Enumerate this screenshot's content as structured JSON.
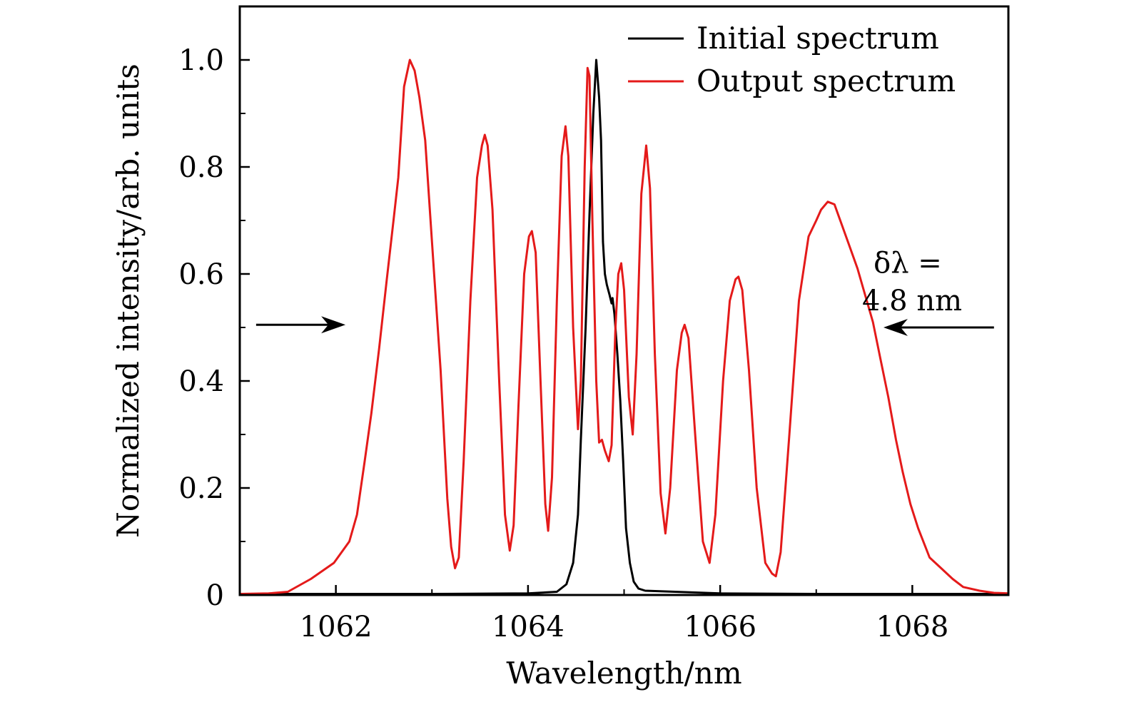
{
  "chart_data": {
    "type": "line",
    "title": "",
    "xlabel": "Wavelength/nm",
    "ylabel": "Normalized intensity/arb. units",
    "xlim": [
      1061,
      1069
    ],
    "ylim": [
      0,
      1.1
    ],
    "x_ticks": [
      1062,
      1064,
      1066,
      1068
    ],
    "x_tick_labels": [
      "1062",
      "1064",
      "1066",
      "1068"
    ],
    "x_minor_ticks": [
      1063,
      1065,
      1067
    ],
    "y_ticks": [
      0,
      0.2,
      0.4,
      0.6,
      0.8,
      1.0
    ],
    "y_tick_labels": [
      "0",
      "0.2",
      "0.4",
      "0.6",
      "0.8",
      "1.0"
    ],
    "y_minor_ticks": [
      0.1,
      0.3,
      0.5,
      0.7,
      0.9
    ],
    "grid": false,
    "legend": {
      "placement": "top-right",
      "entries": [
        "Initial spectrum",
        "Output spectrum"
      ]
    },
    "series": [
      {
        "name": "Initial spectrum",
        "color": "#000000",
        "x": [
          1061.0,
          1062.0,
          1063.0,
          1064.0,
          1064.3,
          1064.4,
          1064.47,
          1064.52,
          1064.55,
          1064.6,
          1064.64,
          1064.68,
          1064.71,
          1064.74,
          1064.76,
          1064.78,
          1064.8,
          1064.82,
          1064.85,
          1064.87,
          1064.88,
          1064.9,
          1064.93,
          1064.96,
          1064.99,
          1065.02,
          1065.06,
          1065.1,
          1065.15,
          1065.22,
          1066.0,
          1067.0,
          1068.0,
          1069.0
        ],
        "y": [
          0.002,
          0.002,
          0.002,
          0.003,
          0.006,
          0.02,
          0.06,
          0.15,
          0.29,
          0.5,
          0.71,
          0.9,
          1.0,
          0.93,
          0.85,
          0.66,
          0.6,
          0.58,
          0.56,
          0.545,
          0.555,
          0.525,
          0.45,
          0.365,
          0.25,
          0.125,
          0.06,
          0.025,
          0.012,
          0.008,
          0.003,
          0.002,
          0.002,
          0.002
        ]
      },
      {
        "name": "Output spectrum",
        "color": "#e41a1a",
        "x": [
          1061.0,
          1061.3,
          1061.5,
          1061.74,
          1061.98,
          1062.14,
          1062.22,
          1062.3,
          1062.37,
          1062.45,
          1062.53,
          1062.6,
          1062.65,
          1062.71,
          1062.77,
          1062.82,
          1062.87,
          1062.93,
          1063.0,
          1063.09,
          1063.16,
          1063.2,
          1063.24,
          1063.28,
          1063.33,
          1063.4,
          1063.47,
          1063.52,
          1063.55,
          1063.58,
          1063.63,
          1063.7,
          1063.76,
          1063.81,
          1063.85,
          1063.9,
          1063.96,
          1064.01,
          1064.04,
          1064.08,
          1064.13,
          1064.18,
          1064.21,
          1064.25,
          1064.3,
          1064.35,
          1064.39,
          1064.42,
          1064.47,
          1064.52,
          1064.55,
          1064.59,
          1064.62,
          1064.64,
          1064.67,
          1064.71,
          1064.74,
          1064.77,
          1064.8,
          1064.84,
          1064.87,
          1064.91,
          1064.94,
          1064.97,
          1065.0,
          1065.05,
          1065.09,
          1065.13,
          1065.18,
          1065.23,
          1065.27,
          1065.32,
          1065.38,
          1065.43,
          1065.48,
          1065.55,
          1065.6,
          1065.63,
          1065.67,
          1065.74,
          1065.82,
          1065.89,
          1065.95,
          1066.03,
          1066.1,
          1066.16,
          1066.19,
          1066.23,
          1066.3,
          1066.38,
          1066.47,
          1066.54,
          1066.58,
          1066.63,
          1066.72,
          1066.82,
          1066.92,
          1067.0,
          1067.05,
          1067.12,
          1067.19,
          1067.25,
          1067.33,
          1067.43,
          1067.51,
          1067.59,
          1067.67,
          1067.75,
          1067.83,
          1067.9,
          1067.98,
          1068.06,
          1068.18,
          1068.3,
          1068.42,
          1068.53,
          1068.7,
          1068.85,
          1069.0
        ],
        "y": [
          0.002,
          0.003,
          0.006,
          0.03,
          0.06,
          0.1,
          0.15,
          0.25,
          0.34,
          0.46,
          0.59,
          0.7,
          0.78,
          0.95,
          1.0,
          0.98,
          0.93,
          0.85,
          0.66,
          0.42,
          0.18,
          0.09,
          0.05,
          0.07,
          0.25,
          0.55,
          0.78,
          0.84,
          0.86,
          0.84,
          0.72,
          0.4,
          0.15,
          0.083,
          0.13,
          0.35,
          0.6,
          0.67,
          0.68,
          0.64,
          0.4,
          0.17,
          0.12,
          0.22,
          0.55,
          0.82,
          0.876,
          0.82,
          0.5,
          0.31,
          0.4,
          0.8,
          0.985,
          0.97,
          0.7,
          0.4,
          0.285,
          0.29,
          0.27,
          0.25,
          0.28,
          0.5,
          0.6,
          0.62,
          0.57,
          0.37,
          0.3,
          0.45,
          0.75,
          0.84,
          0.76,
          0.45,
          0.19,
          0.115,
          0.2,
          0.42,
          0.49,
          0.505,
          0.48,
          0.3,
          0.1,
          0.06,
          0.15,
          0.4,
          0.55,
          0.59,
          0.595,
          0.57,
          0.42,
          0.2,
          0.06,
          0.04,
          0.035,
          0.08,
          0.3,
          0.55,
          0.67,
          0.7,
          0.72,
          0.735,
          0.73,
          0.7,
          0.66,
          0.61,
          0.56,
          0.51,
          0.44,
          0.37,
          0.29,
          0.23,
          0.17,
          0.125,
          0.07,
          0.05,
          0.03,
          0.015,
          0.008,
          0.004,
          0.003
        ]
      }
    ],
    "annotations": [
      {
        "text_line1": "δλ =",
        "text_line2": "4.8 nm"
      },
      {
        "arrow_left": {
          "from_x": 1061.17,
          "to_x": 1062.1,
          "y": 0.505
        }
      },
      {
        "arrow_right": {
          "from_x": 1068.85,
          "to_x": 1067.7,
          "y": 0.5
        }
      }
    ]
  }
}
